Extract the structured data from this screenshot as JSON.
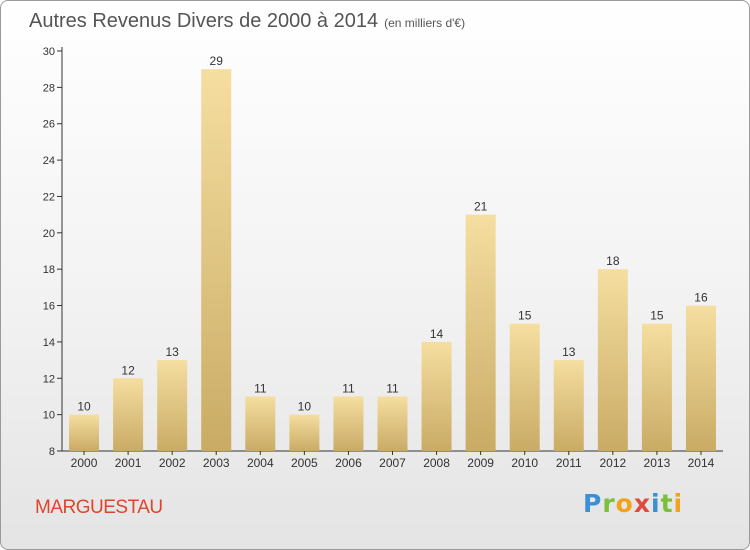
{
  "header": {
    "title": "Autres Revenus Divers de 2000 à 2014",
    "subtitle": "(en milliers d'€)"
  },
  "footer": {
    "commune": "MARGUESTAU",
    "logo_text": "Proxiti"
  },
  "colors": {
    "bar_light": "#f5dea0",
    "bar_dark": "#c9ab65",
    "commune": "#e0442c",
    "axis": "#333333"
  },
  "chart_data": {
    "type": "bar",
    "title": "Autres Revenus Divers de 2000 à 2014",
    "subtitle": "(en milliers d'€)",
    "categories": [
      "2000",
      "2001",
      "2002",
      "2003",
      "2004",
      "2005",
      "2006",
      "2007",
      "2008",
      "2009",
      "2010",
      "2011",
      "2012",
      "2013",
      "2014"
    ],
    "values": [
      10,
      12,
      13,
      29,
      11,
      10,
      11,
      11,
      14,
      21,
      15,
      13,
      18,
      15,
      16
    ],
    "ylim": [
      8,
      30
    ],
    "yticks": [
      8,
      10,
      12,
      14,
      16,
      18,
      20,
      22,
      24,
      26,
      28,
      30
    ],
    "grid": false,
    "data_labels": true
  }
}
